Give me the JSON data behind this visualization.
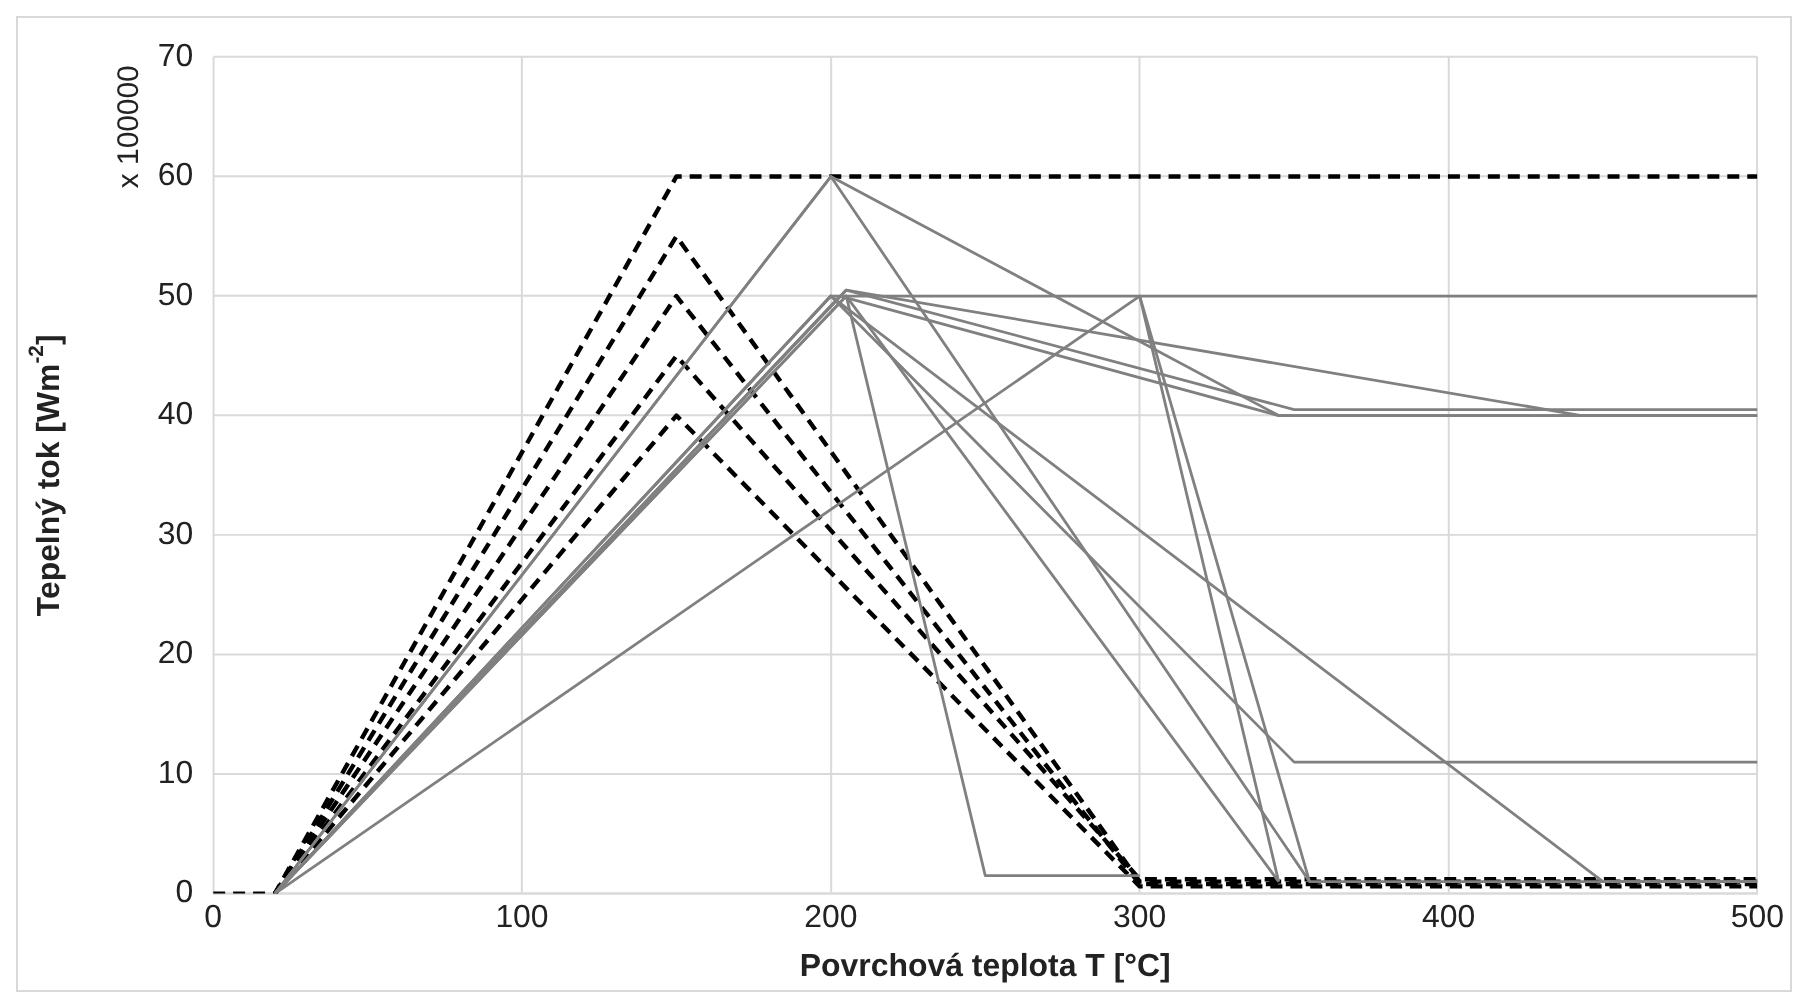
{
  "chart_data": {
    "type": "line",
    "xlabel": "Povrchová teplota T [°C]",
    "ylabel": "Tepelný tok [Wm$^{-2}$]",
    "annotations": [
      "x 100000"
    ],
    "xlim": [
      0,
      500
    ],
    "xticks": [
      0,
      100,
      200,
      300,
      400,
      500
    ],
    "ylim": [
      0,
      70
    ],
    "yticks": [
      0,
      10,
      20,
      30,
      40,
      50,
      60,
      70
    ],
    "grid": true,
    "legend": false,
    "marker": "none",
    "series": [
      {
        "color": "#808080",
        "line_style": "solid",
        "x": [
          20,
          200,
          345,
          500
        ],
        "values": [
          0,
          60,
          40,
          40
        ]
      },
      {
        "color": "#808080",
        "line_style": "solid",
        "x": [
          20,
          200,
          355,
          500
        ],
        "values": [
          0,
          60,
          1,
          1
        ]
      },
      {
        "color": "#808080",
        "line_style": "solid",
        "x": [
          20,
          200,
          500
        ],
        "values": [
          0,
          50,
          50
        ]
      },
      {
        "color": "#808080",
        "line_style": "solid",
        "x": [
          20,
          205,
          350,
          500
        ],
        "values": [
          0,
          50.5,
          40.5,
          40.5
        ]
      },
      {
        "color": "#808080",
        "line_style": "solid",
        "x": [
          20,
          205,
          443,
          500
        ],
        "values": [
          0,
          50.5,
          40,
          40
        ]
      },
      {
        "color": "#808080",
        "line_style": "solid",
        "x": [
          20,
          203,
          345,
          500
        ],
        "values": [
          0,
          50,
          40,
          40
        ]
      },
      {
        "color": "#808080",
        "line_style": "solid",
        "x": [
          20,
          205,
          250,
          300
        ],
        "values": [
          0,
          50,
          1.5,
          1.5
        ]
      },
      {
        "color": "#808080",
        "line_style": "solid",
        "x": [
          20,
          200,
          350,
          500
        ],
        "values": [
          0,
          50,
          11,
          11
        ]
      },
      {
        "color": "#808080",
        "line_style": "solid",
        "x": [
          20,
          200,
          450,
          500
        ],
        "values": [
          0,
          50,
          1,
          1
        ]
      },
      {
        "color": "#808080",
        "line_style": "solid",
        "x": [
          20,
          205,
          345
        ],
        "values": [
          0,
          50,
          1
        ]
      },
      {
        "color": "#808080",
        "line_style": "solid",
        "x": [
          20,
          300,
          345
        ],
        "values": [
          0,
          50,
          1
        ]
      },
      {
        "color": "#808080",
        "line_style": "solid",
        "x": [
          300,
          355
        ],
        "values": [
          50,
          1
        ]
      },
      {
        "color": "#000000",
        "line_style": "dashed",
        "x": [
          0,
          20,
          150,
          500
        ],
        "values": [
          0,
          0,
          60,
          60
        ]
      },
      {
        "color": "#000000",
        "line_style": "dashed",
        "x": [
          20,
          150,
          300,
          500
        ],
        "values": [
          0,
          55,
          1,
          1
        ]
      },
      {
        "color": "#000000",
        "line_style": "dashed",
        "x": [
          20,
          150,
          300,
          500
        ],
        "values": [
          0,
          50,
          0.8,
          0.8
        ]
      },
      {
        "color": "#000000",
        "line_style": "dashed",
        "x": [
          20,
          150,
          300,
          500
        ],
        "values": [
          0,
          45,
          1.2,
          1.2
        ]
      },
      {
        "color": "#000000",
        "line_style": "dashed",
        "x": [
          20,
          150,
          300,
          500
        ],
        "values": [
          0,
          40,
          0.6,
          0.6
        ]
      }
    ]
  }
}
